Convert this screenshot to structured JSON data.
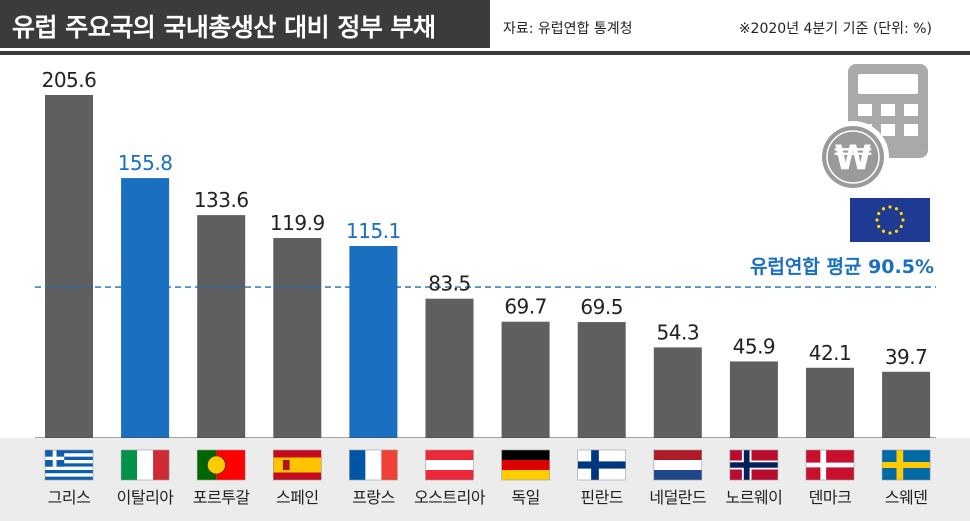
{
  "header": {
    "title": "유럽 주요국의 국내총생산 대비 정부 부채",
    "source": "자료: 유럽연합 통계청",
    "note": "※2020년 4분기 기준 (단위: %)"
  },
  "icons": {
    "calculator": "calculator-icon",
    "coin": "won-coin-icon",
    "eu_flag": "eu-flag-icon"
  },
  "colors": {
    "default_bar": "#5f5f5f",
    "highlight_bar": "#1a6fc0",
    "average_line": "#1a6fc0",
    "text": "#222222",
    "flag_bg": "#ececec"
  },
  "chart_data": {
    "type": "bar",
    "title": "유럽 주요국의 국내총생산 대비 정부 부채",
    "categories": [
      "그리스",
      "이탈리아",
      "포르투갈",
      "스페인",
      "프랑스",
      "오스트리아",
      "독일",
      "핀란드",
      "네덜란드",
      "노르웨이",
      "덴마크",
      "스웨덴"
    ],
    "values": [
      205.6,
      155.8,
      133.6,
      119.9,
      115.1,
      83.5,
      69.7,
      69.5,
      54.3,
      45.9,
      42.1,
      39.7
    ],
    "value_labels": [
      "205.6",
      "155.8",
      "133.6",
      "119.9",
      "115.1",
      "83.5",
      "69.7",
      "69.5",
      "54.3",
      "45.9",
      "42.1",
      "39.7"
    ],
    "highlighted": [
      "이탈리아",
      "프랑스"
    ],
    "flags": [
      "greece-flag-icon",
      "italy-flag-icon",
      "portugal-flag-icon",
      "spain-flag-icon",
      "france-flag-icon",
      "austria-flag-icon",
      "germany-flag-icon",
      "finland-flag-icon",
      "netherlands-flag-icon",
      "norway-flag-icon",
      "denmark-flag-icon",
      "sweden-flag-icon"
    ],
    "average": {
      "label": "유럽연합 평균",
      "value": 90.5,
      "value_label": "90.5%"
    },
    "ylim": [
      0,
      220
    ],
    "grid": false,
    "legend": "none"
  }
}
